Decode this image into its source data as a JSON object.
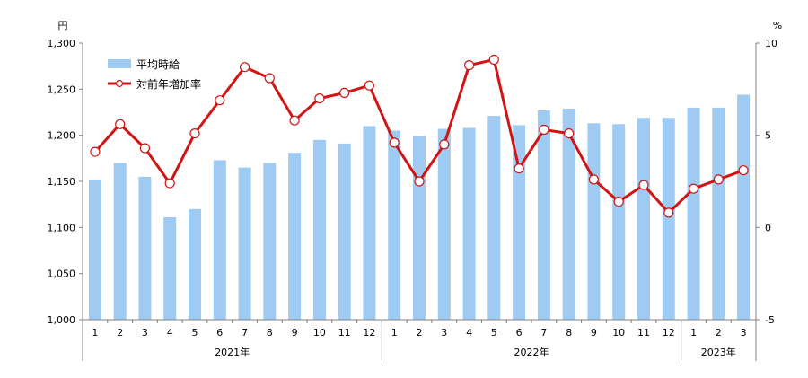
{
  "chart_data": {
    "type": "bar",
    "left_unit": "円",
    "right_unit": "%",
    "left_ylim": [
      1000,
      1300
    ],
    "left_ticks": [
      "1,000",
      "1,050",
      "1,100",
      "1,150",
      "1,200",
      "1,250",
      "1,300"
    ],
    "right_ylim": [
      -5,
      10
    ],
    "right_ticks": [
      "-5",
      "0",
      "5",
      "10"
    ],
    "categories": [
      "1",
      "2",
      "3",
      "4",
      "5",
      "6",
      "7",
      "8",
      "9",
      "10",
      "11",
      "12",
      "1",
      "2",
      "3",
      "4",
      "5",
      "6",
      "7",
      "8",
      "9",
      "10",
      "11",
      "12",
      "1",
      "2",
      "3"
    ],
    "years": [
      {
        "label": "2021年",
        "count": 12
      },
      {
        "label": "2022年",
        "count": 12
      },
      {
        "label": "2023年",
        "count": 3
      }
    ],
    "series": [
      {
        "name": "平均時給",
        "type": "bar",
        "axis": "left",
        "color": "#9FCBF2",
        "values": [
          1152,
          1170,
          1155,
          1111,
          1120,
          1173,
          1165,
          1170,
          1181,
          1195,
          1191,
          1210,
          1205,
          1199,
          1207,
          1208,
          1221,
          1211,
          1227,
          1229,
          1213,
          1212,
          1219,
          1219,
          1230,
          1230,
          1244
        ]
      },
      {
        "name": "対前年増加率",
        "type": "line",
        "axis": "right",
        "color": "#D11414",
        "values": [
          4.1,
          5.6,
          4.3,
          2.4,
          5.1,
          6.9,
          8.7,
          8.1,
          5.8,
          7.0,
          7.3,
          7.7,
          4.6,
          2.5,
          4.5,
          8.8,
          9.1,
          3.2,
          5.3,
          5.1,
          2.6,
          1.4,
          2.3,
          0.8,
          2.1,
          2.6,
          3.1
        ]
      }
    ],
    "legend_position": "top-left"
  }
}
